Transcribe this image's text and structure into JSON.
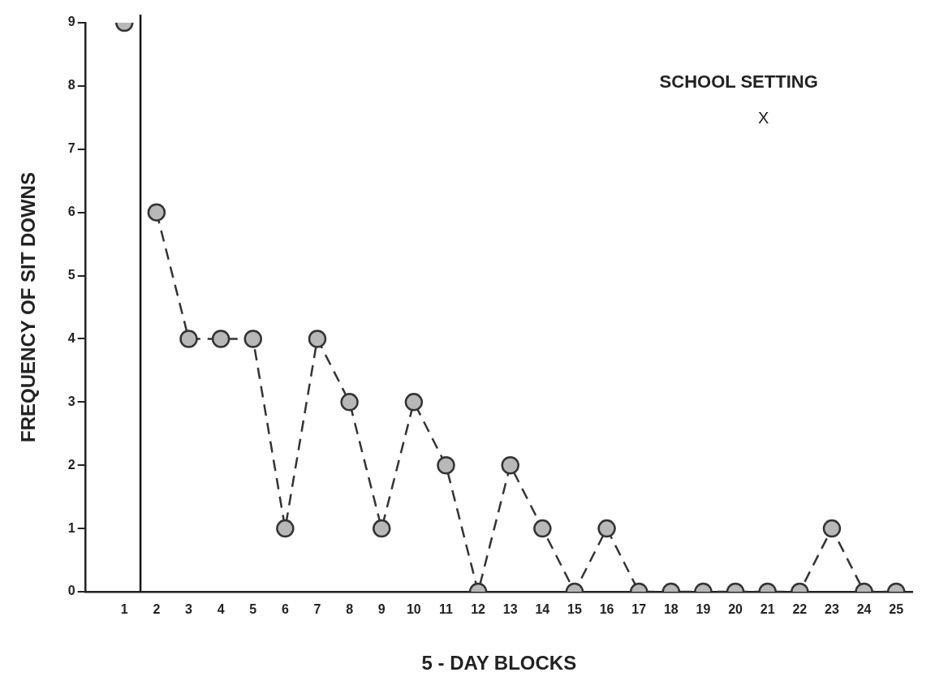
{
  "chart_data": {
    "type": "line",
    "xlabel": "5 - DAY BLOCKS",
    "ylabel": "FREQUENCY OF SIT DOWNS",
    "xlim": [
      -0.2,
      25.5
    ],
    "xticks": [
      1,
      2,
      3,
      4,
      5,
      6,
      7,
      8,
      9,
      10,
      11,
      12,
      13,
      14,
      15,
      16,
      17,
      18,
      19,
      20,
      21,
      22,
      23,
      24,
      25
    ],
    "ylim": [
      0,
      9
    ],
    "yticks": [
      0,
      1,
      2,
      3,
      4,
      5,
      6,
      7,
      8,
      9
    ],
    "series": [
      {
        "color": "#333333",
        "x": [
          1
        ],
        "values": [
          9
        ]
      },
      {
        "color": "#333333",
        "x": [
          2,
          3,
          4,
          5,
          6,
          7,
          8,
          9,
          10,
          11,
          12,
          13,
          14,
          15,
          16,
          17,
          18,
          19,
          20,
          21,
          22,
          23,
          24,
          25
        ],
        "values": [
          6,
          4,
          4,
          4,
          1,
          4,
          3,
          1,
          3,
          2,
          0,
          2,
          1,
          0,
          1,
          0,
          0,
          0,
          0,
          0,
          0,
          1,
          0,
          0
        ]
      }
    ],
    "ref_lines": [
      {
        "axis": "x",
        "value": 1.5,
        "color": "#111111"
      }
    ],
    "annotations": [
      "SCHOOL SETTING",
      "X"
    ],
    "marker": "circle",
    "line_style": "dashed",
    "grid": false,
    "legend": false
  }
}
